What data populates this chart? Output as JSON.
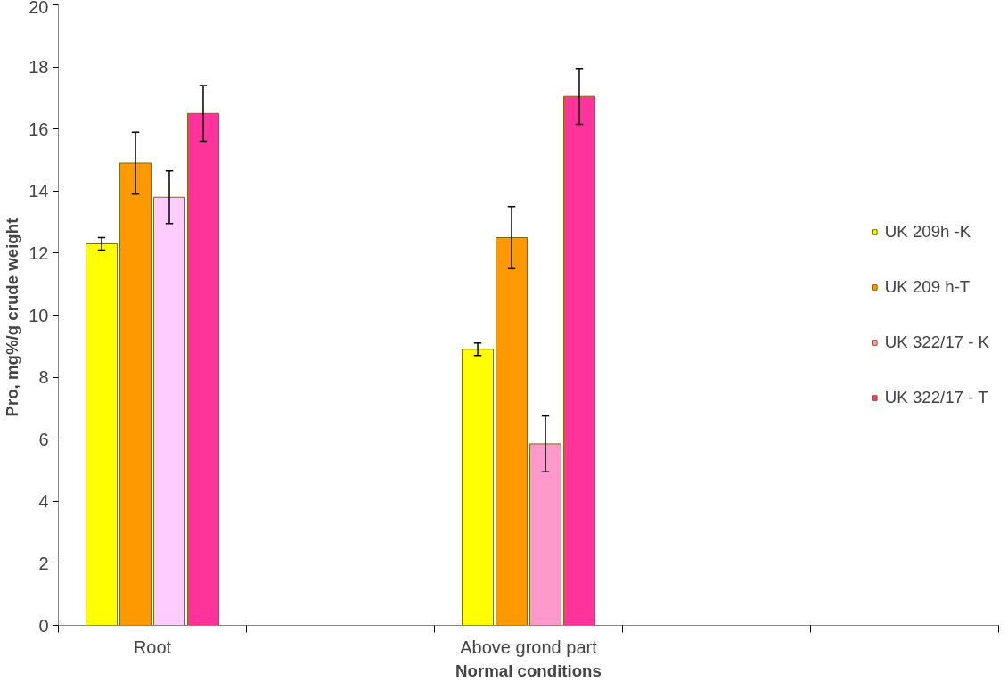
{
  "chart_data": {
    "type": "bar",
    "xlabel": "Normal conditions",
    "ylabel": "Pro, mg%/g  crude weight",
    "categories": [
      "Root",
      null,
      "Above grond part",
      null,
      null
    ],
    "ylim": [
      0,
      20
    ],
    "yticks": [
      0,
      2,
      4,
      6,
      8,
      10,
      12,
      14,
      16,
      18,
      20
    ],
    "grid": false,
    "legend": "right",
    "series": [
      {
        "name": "UK 209h -K",
        "color": "#ffff00",
        "values": [
          12.3,
          null,
          8.9,
          null,
          null
        ],
        "errors": [
          0.2,
          null,
          0.2,
          null,
          null
        ]
      },
      {
        "name": "UK 209 h-T",
        "color": "#ff9900",
        "values": [
          14.9,
          null,
          12.5,
          null,
          null
        ],
        "errors": [
          1.0,
          null,
          1.0,
          null,
          null
        ]
      },
      {
        "name": "UK 322/17 - K",
        "color": "#ff99cc",
        "colors": [
          "#ffccff",
          null,
          "#ff99cc",
          null,
          null
        ],
        "values": [
          13.8,
          null,
          5.85,
          null,
          null
        ],
        "errors": [
          0.85,
          null,
          0.9,
          null,
          null
        ]
      },
      {
        "name": "UK 322/17 - T",
        "color": "#ff3399",
        "values": [
          16.5,
          null,
          17.05,
          null,
          null
        ],
        "errors": [
          0.9,
          null,
          0.9,
          null,
          null
        ]
      }
    ]
  }
}
